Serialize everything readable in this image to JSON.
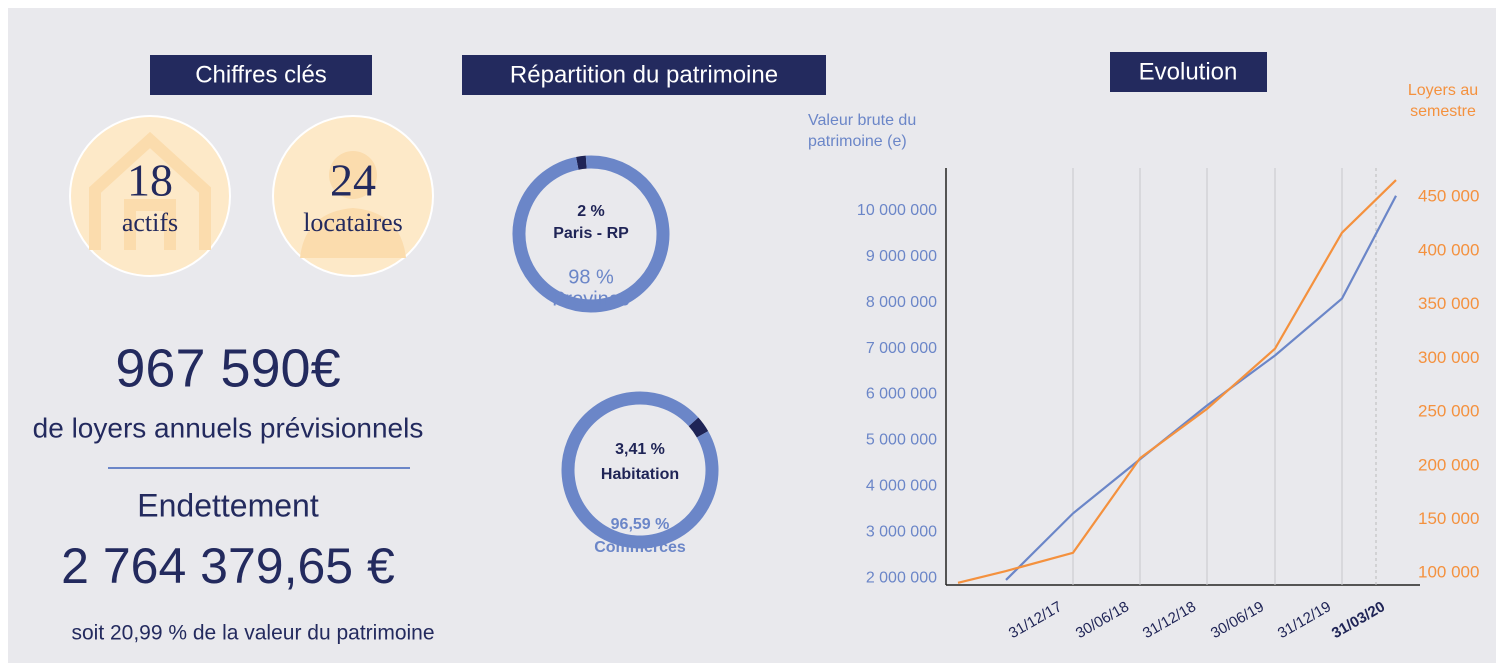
{
  "sections": {
    "key_figures": "Chiffres clés",
    "distribution": "Répartition du patrimoine",
    "evolution": "Evolution"
  },
  "key_figures": {
    "assets": {
      "value": "18",
      "label": "actifs"
    },
    "tenants": {
      "value": "24",
      "label": "locataires"
    },
    "rent": "967 590€",
    "rent_caption": "de loyers annuels prévisionnels",
    "debt_title": "Endettement",
    "debt": "2 764 379,65 €",
    "debt_caption": "soit 20,99 % de la valeur du patrimoine"
  },
  "chart_data": [
    {
      "type": "donut",
      "categories": [
        "Paris - RP",
        "Province"
      ],
      "values": [
        2,
        98
      ],
      "value_labels": [
        "2 %",
        "98  %"
      ],
      "colors": [
        "#1f2456",
        "#6b86c8"
      ]
    },
    {
      "type": "donut",
      "categories": [
        "Habitation",
        "Commerces"
      ],
      "values": [
        3.41,
        96.59
      ],
      "value_labels": [
        "3,41 %",
        "96,59 %"
      ],
      "colors": [
        "#1f2456",
        "#6b86c8"
      ]
    },
    {
      "type": "line",
      "categories": [
        null,
        null,
        "31/12/17",
        "30/06/18",
        "31/12/18",
        "30/06/19",
        "31/12/19",
        "31/03/20"
      ],
      "series": [
        {
          "name": "Valeur brute du patrimoine (e)",
          "color": "#6b86c8",
          "values": [
            null,
            1960000,
            3410000,
            4590000,
            5760000,
            6850000,
            8090000,
            10330000
          ]
        },
        {
          "name": "Loyers au semestre",
          "color": "#f4913e",
          "axis": "y2",
          "values": [
            91000,
            102000,
            119000,
            207000,
            253000,
            309000,
            417000,
            466000
          ]
        }
      ],
      "ylim": [
        1850000,
        11000000
      ],
      "yticks": [
        {
          "value": 2000000,
          "label": "2 000 000"
        },
        {
          "value": 3000000,
          "label": "3 000 000"
        },
        {
          "value": 4000000,
          "label": "4 000 000"
        },
        {
          "value": 5000000,
          "label": "5 000 000"
        },
        {
          "value": 6000000,
          "label": "6 000 000"
        },
        {
          "value": 7000000,
          "label": "7 000 000"
        },
        {
          "value": 8000000,
          "label": "8 000 000"
        },
        {
          "value": 9000000,
          "label": "9 000 000"
        },
        {
          "value": 10000000,
          "label": "10 000 000"
        }
      ],
      "y2lim": [
        89000,
        480000
      ],
      "y2ticks": [
        {
          "value": 100000,
          "label": "100 000"
        },
        {
          "value": 150000,
          "label": "150 000"
        },
        {
          "value": 200000,
          "label": "200 000"
        },
        {
          "value": 250000,
          "label": "250 000"
        },
        {
          "value": 300000,
          "label": "300 000"
        },
        {
          "value": 350000,
          "label": "350 000"
        },
        {
          "value": 400000,
          "label": "400 000"
        },
        {
          "value": 450000,
          "label": "450 000"
        }
      ],
      "grid": "x"
    }
  ]
}
